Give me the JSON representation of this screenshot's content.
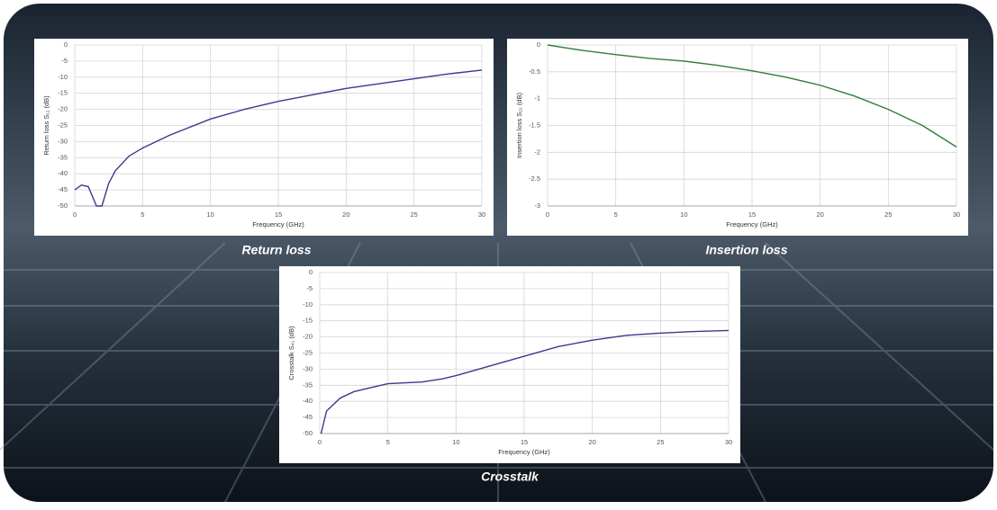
{
  "chart_data": [
    {
      "type": "line",
      "title": "Return loss",
      "xlabel": "Frequency (GHz)",
      "ylabel": "Return loss S₁₁ (dB)",
      "color": "#3a3a8c",
      "x": [
        0,
        0.5,
        1,
        1.3,
        1.6,
        2.0,
        2.5,
        3,
        4,
        5,
        7,
        10,
        12.5,
        15,
        17.5,
        20,
        22.5,
        25,
        27.5,
        30
      ],
      "values": [
        -45,
        -43.5,
        -44,
        -47,
        -50,
        -50,
        -43,
        -39,
        -34.5,
        -32,
        -28,
        -23,
        -20,
        -17.5,
        -15.5,
        -13.5,
        -12,
        -10.5,
        -9,
        -7.8
      ],
      "xlim": [
        0,
        30
      ],
      "xticks": [
        0,
        5,
        10,
        15,
        20,
        25,
        30
      ],
      "ylim": [
        -50,
        0
      ],
      "yticks": [
        0,
        -5,
        -10,
        -15,
        -20,
        -25,
        -30,
        -35,
        -40,
        -45,
        -50
      ],
      "grid": true
    },
    {
      "type": "line",
      "title": "Insertion loss",
      "xlabel": "Frequency (GHz)",
      "ylabel": "Insertion loss S₂₁ (dB)",
      "color": "#2e7d3a",
      "x": [
        0,
        2.5,
        5,
        7.5,
        10,
        12.5,
        15,
        17.5,
        20,
        22.5,
        25,
        27.5,
        30
      ],
      "values": [
        0,
        -0.1,
        -0.18,
        -0.25,
        -0.3,
        -0.38,
        -0.48,
        -0.6,
        -0.75,
        -0.95,
        -1.2,
        -1.5,
        -1.9
      ],
      "xlim": [
        0,
        30
      ],
      "xticks": [
        0,
        5,
        10,
        15,
        20,
        25,
        30
      ],
      "ylim": [
        -3,
        0
      ],
      "yticks": [
        0,
        -0.5,
        -1,
        -1.5,
        -2,
        -2.5,
        -3
      ],
      "grid": true
    },
    {
      "type": "line",
      "title": "Crosstalk",
      "xlabel": "Frequency (GHz)",
      "ylabel": "Crosstalk S₄₁ (dB)",
      "color": "#3a3a8c",
      "x": [
        0.1,
        0.5,
        1.5,
        2.5,
        4,
        5,
        7.5,
        9,
        10,
        12.5,
        15,
        17.5,
        20,
        22.5,
        25,
        27.5,
        30
      ],
      "values": [
        -50,
        -43,
        -39,
        -37,
        -35.5,
        -34.5,
        -34,
        -33,
        -32,
        -29,
        -26,
        -23,
        -21,
        -19.5,
        -18.8,
        -18.3,
        -18
      ],
      "xlim": [
        0,
        30
      ],
      "xticks": [
        0,
        5,
        10,
        15,
        20,
        25,
        30
      ],
      "ylim": [
        -50,
        0
      ],
      "yticks": [
        0,
        -5,
        -10,
        -15,
        -20,
        -25,
        -30,
        -35,
        -40,
        -45,
        -50
      ],
      "grid": true
    }
  ]
}
